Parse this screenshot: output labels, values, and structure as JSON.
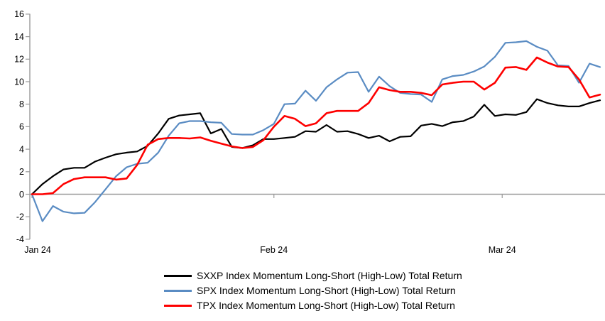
{
  "chart_data": {
    "type": "line",
    "title": "",
    "xlabel": "",
    "ylabel": "",
    "grid": false,
    "legend_position": "bottom",
    "x_axis": {
      "tick_labels": [
        "Jan 24",
        "Feb 24",
        "Mar 24"
      ],
      "tick_day_index": [
        0,
        23,
        44.7
      ]
    },
    "y_axis": {
      "min": -4,
      "max": 16,
      "tick_step": 2,
      "ticks": [
        16,
        14,
        12,
        10,
        8,
        6,
        4,
        2,
        0,
        -2,
        -4
      ]
    },
    "axis_color": "#9a9a9a",
    "series": [
      {
        "name": "SXXP Index Momentum Long-Short (High-Low) Total Return",
        "color": "#000000",
        "values": [
          0,
          0.9,
          1.6,
          2.2,
          2.35,
          2.35,
          2.9,
          3.25,
          3.55,
          3.7,
          3.8,
          4.3,
          5.4,
          6.7,
          7.0,
          7.1,
          7.2,
          5.4,
          5.8,
          4.2,
          4.1,
          4.35,
          4.9,
          4.9,
          5.0,
          5.1,
          5.6,
          5.55,
          6.15,
          5.55,
          5.6,
          5.35,
          5.0,
          5.2,
          4.7,
          5.1,
          5.15,
          6.1,
          6.25,
          6.05,
          6.4,
          6.5,
          6.9,
          7.95,
          6.95,
          7.1,
          7.05,
          7.3,
          8.45,
          8.1,
          7.9,
          7.8,
          7.8,
          8.1,
          8.35
        ]
      },
      {
        "name": "SPX Index Momentum Long-Short (High-Low) Total Return",
        "color": "#5a8cc3",
        "values": [
          0,
          -2.4,
          -1.05,
          -1.55,
          -1.7,
          -1.65,
          -0.7,
          0.45,
          1.6,
          2.4,
          2.7,
          2.8,
          3.7,
          5.2,
          6.3,
          6.5,
          6.5,
          6.4,
          6.35,
          5.35,
          5.3,
          5.3,
          5.7,
          6.25,
          8.0,
          8.05,
          9.2,
          8.3,
          9.5,
          10.2,
          10.8,
          10.85,
          9.1,
          10.45,
          9.6,
          9.0,
          8.9,
          8.85,
          8.2,
          10.2,
          10.5,
          10.6,
          10.9,
          11.35,
          12.2,
          13.45,
          13.5,
          13.6,
          13.1,
          12.75,
          11.45,
          11.4,
          9.9,
          11.6,
          11.3
        ]
      },
      {
        "name": "TPX Index Momentum Long-Short (High-Low) Total Return",
        "color": "#fe0000",
        "values": [
          0,
          0,
          0.1,
          0.9,
          1.35,
          1.5,
          1.5,
          1.5,
          1.3,
          1.4,
          2.6,
          4.4,
          4.9,
          5.0,
          5.0,
          4.95,
          5.05,
          4.75,
          4.5,
          4.25,
          4.1,
          4.2,
          4.8,
          6.0,
          6.95,
          6.7,
          6.05,
          6.3,
          7.2,
          7.4,
          7.4,
          7.4,
          8.1,
          9.5,
          9.25,
          9.1,
          9.1,
          9.0,
          8.8,
          9.75,
          9.9,
          10.0,
          10.0,
          9.3,
          9.9,
          11.25,
          11.3,
          11.05,
          12.15,
          11.7,
          11.35,
          11.3,
          10.2,
          8.6,
          8.85
        ]
      }
    ]
  }
}
